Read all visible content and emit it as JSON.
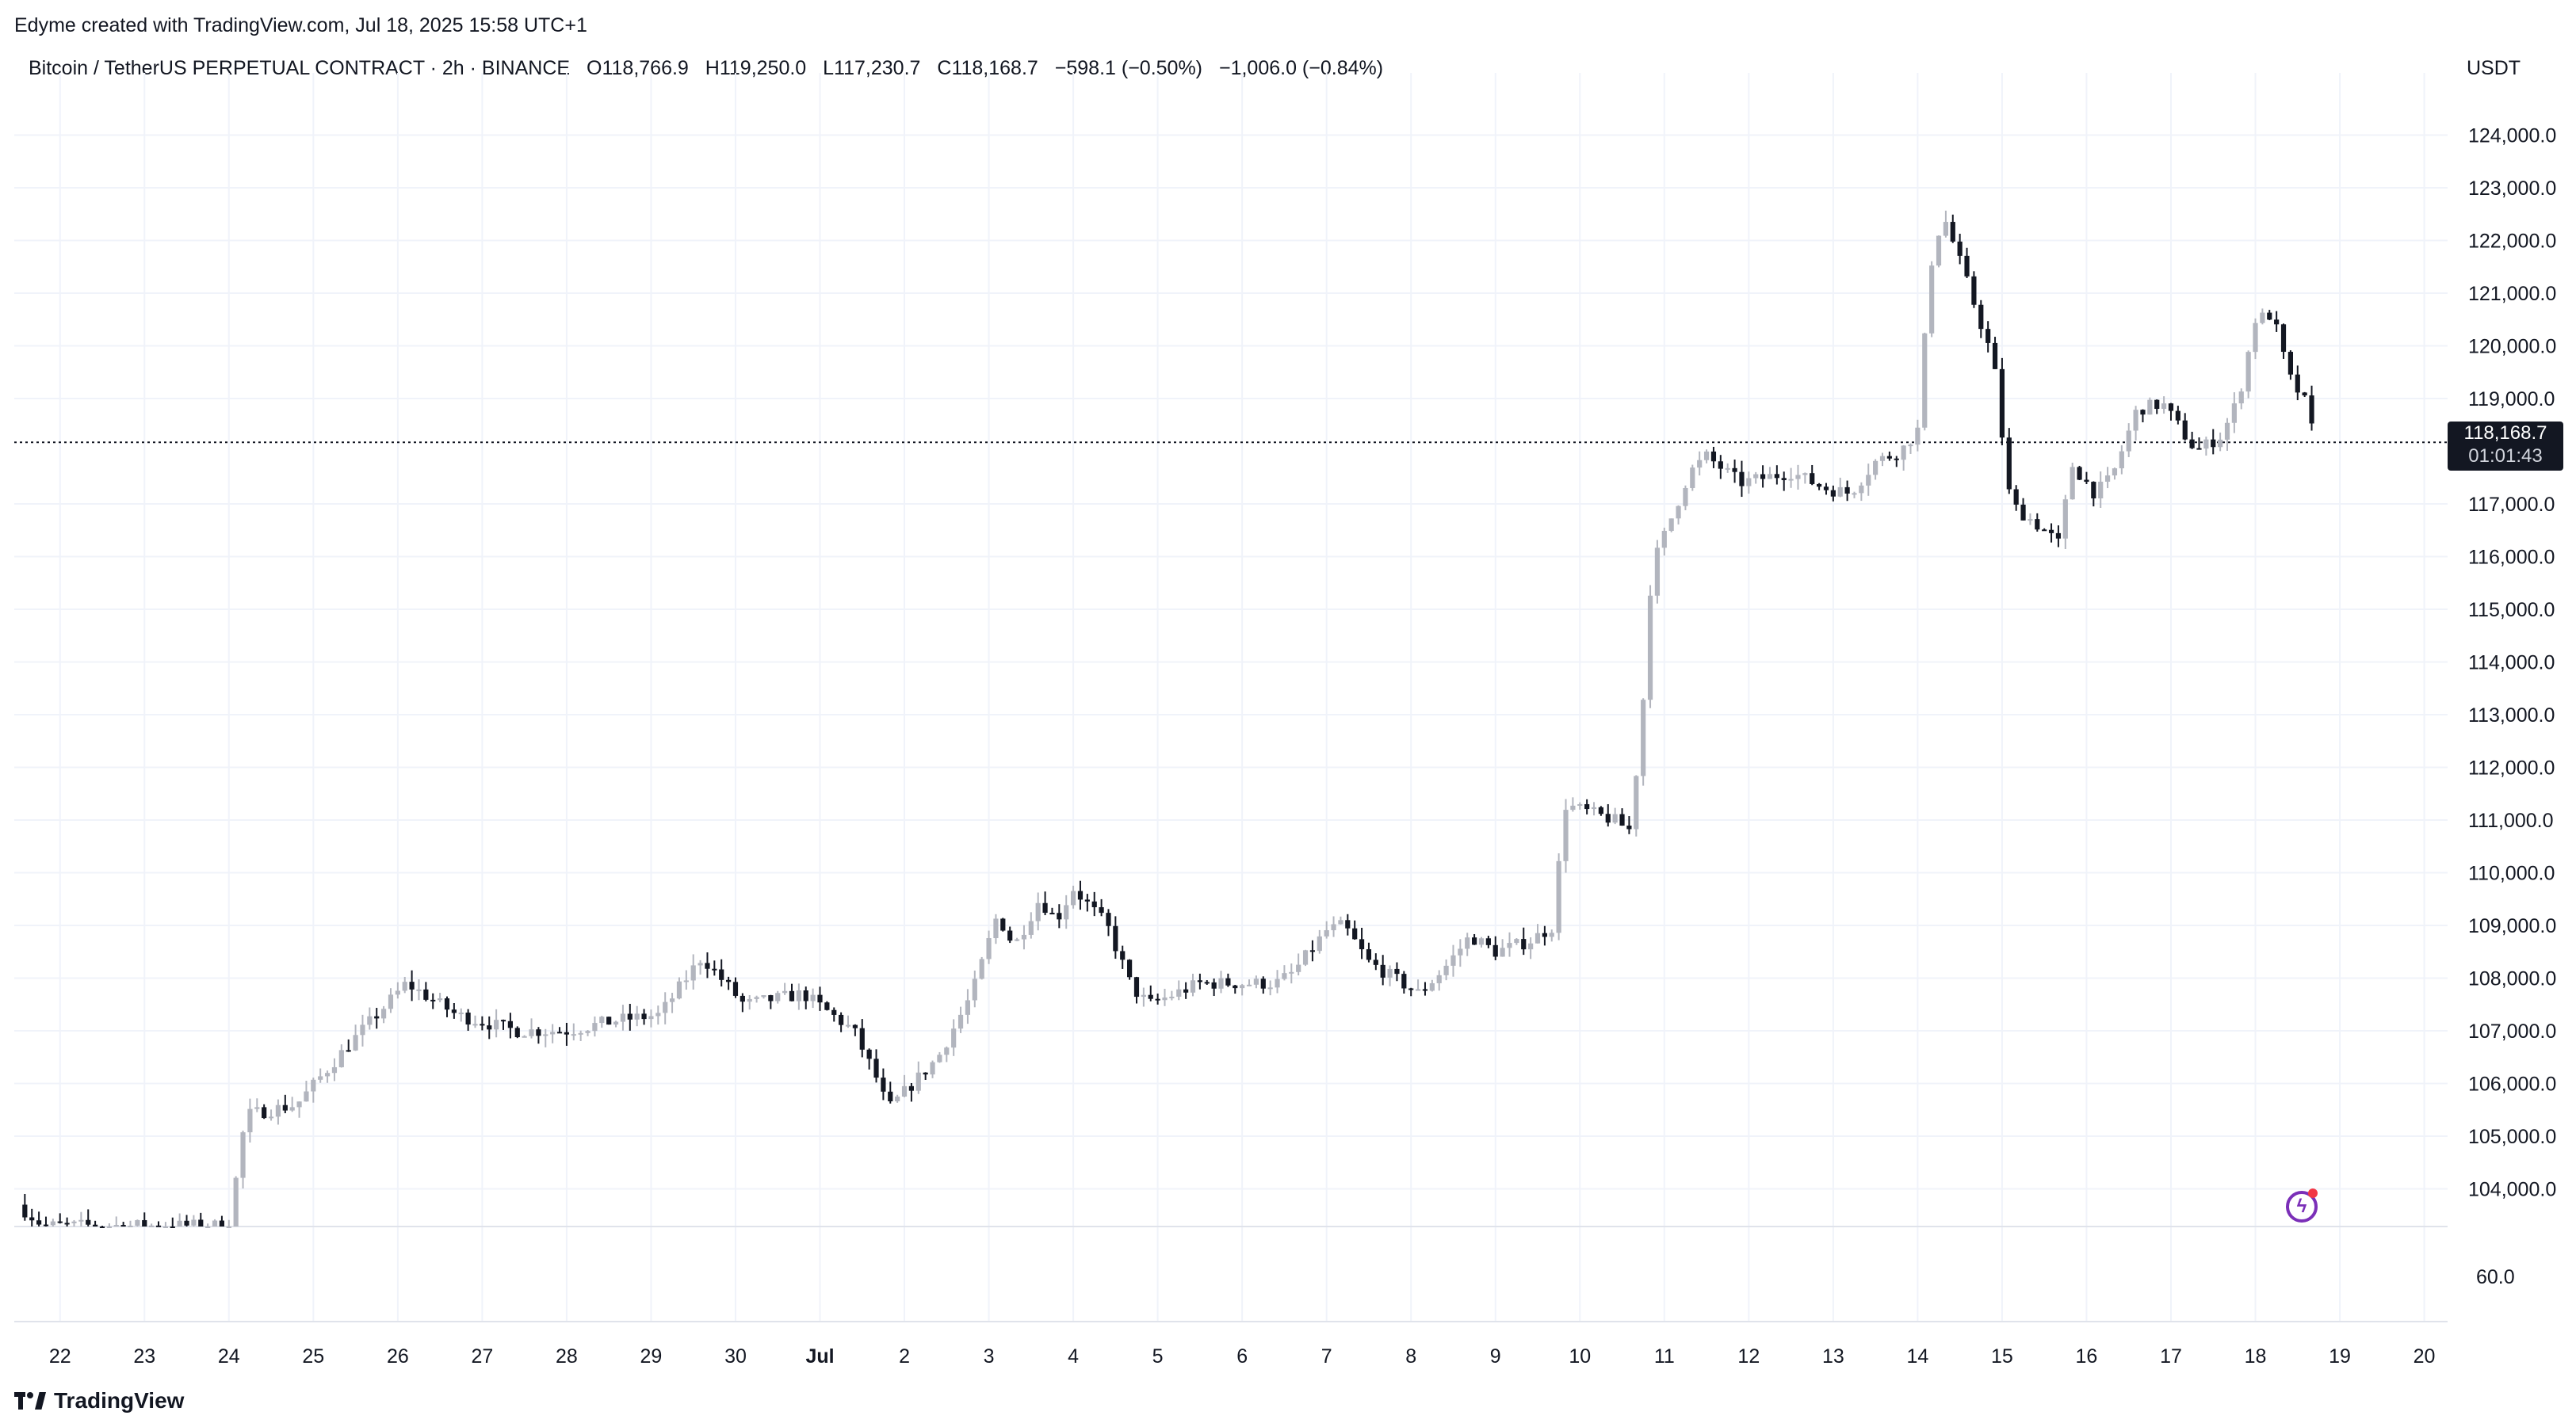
{
  "credit": "Edyme created with TradingView.com, Jul 18, 2025 15:58 UTC+1",
  "legend": {
    "symbol": "Bitcoin / TetherUS PERPETUAL CONTRACT · 2h · BINANCE",
    "open": "O118,766.9",
    "high": "H119,250.0",
    "low": "L117,230.7",
    "close": "C118,168.7",
    "change": "−598.1 (−0.50%)",
    "change2": "−1,006.0 (−0.84%)"
  },
  "currency": "USDT",
  "last_price": "118,168.7",
  "countdown": "01:01:43",
  "brand": "TradingView",
  "colors": {
    "up": "#b2b5be",
    "down": "#131722",
    "grid": "#f0f3fa",
    "text": "#131722",
    "badge_accent": "#7b2fb8"
  },
  "icons": {
    "brand": "tradingview-logo-icon",
    "badge": "lightning-bolt-icon"
  },
  "chart_data": {
    "type": "candlestick",
    "title": "",
    "price_range": [
      103300,
      124800
    ],
    "y_ticks": [
      "124,000.0",
      "123,000.0",
      "122,000.0",
      "121,000.0",
      "120,000.0",
      "119,000.0",
      "117,000.0",
      "116,000.0",
      "115,000.0",
      "114,000.0",
      "113,000.0",
      "112,000.0",
      "111,000.0",
      "110,000.0",
      "109,000.0",
      "108,000.0",
      "107,000.0",
      "106,000.0",
      "105,000.0",
      "104,000.0"
    ],
    "y_tick_values": [
      124000,
      123000,
      122000,
      121000,
      120000,
      119000,
      117000,
      116000,
      115000,
      114000,
      113000,
      112000,
      111000,
      110000,
      109000,
      108000,
      107000,
      106000,
      105000,
      104000
    ],
    "indicator_tick": "60.0",
    "x_ticks": [
      "22",
      "23",
      "24",
      "25",
      "26",
      "27",
      "28",
      "29",
      "30",
      "Jul",
      "2",
      "3",
      "4",
      "5",
      "6",
      "7",
      "8",
      "9",
      "10",
      "11",
      "12",
      "13",
      "14",
      "15",
      "16",
      "17",
      "18",
      "19",
      "20"
    ],
    "x_tick_days": [
      -9,
      -8,
      -7,
      -6,
      -5,
      -4,
      -3,
      -2,
      -1,
      0,
      1,
      2,
      3,
      4,
      5,
      6,
      7,
      8,
      9,
      10,
      11,
      12,
      13,
      14,
      15,
      16,
      17,
      18,
      19
    ],
    "last_price_value": 118168.7,
    "grid": true,
    "anchors": [
      [
        -9.5,
        103700
      ],
      [
        -9.2,
        103300
      ],
      [
        -7.0,
        103300
      ],
      [
        -6.8,
        105400
      ],
      [
        -6.2,
        105600
      ],
      [
        -5.6,
        106700
      ],
      [
        -4.9,
        107900
      ],
      [
        -4.3,
        107300
      ],
      [
        -3.6,
        107000
      ],
      [
        -3.0,
        107000
      ],
      [
        -2.4,
        107200
      ],
      [
        -1.9,
        107300
      ],
      [
        -1.4,
        108400
      ],
      [
        -0.9,
        107500
      ],
      [
        -0.2,
        107700
      ],
      [
        0.4,
        107000
      ],
      [
        0.7,
        106000
      ],
      [
        0.8,
        105500
      ],
      [
        1.4,
        106500
      ],
      [
        1.8,
        107700
      ],
      [
        2.1,
        109200
      ],
      [
        2.3,
        108600
      ],
      [
        2.6,
        109500
      ],
      [
        2.8,
        109100
      ],
      [
        3.0,
        109700
      ],
      [
        3.4,
        109000
      ],
      [
        3.5,
        108600
      ],
      [
        3.7,
        107800
      ],
      [
        3.9,
        107500
      ],
      [
        4.5,
        107900
      ],
      [
        5.1,
        107900
      ],
      [
        5.4,
        107900
      ],
      [
        5.6,
        108100
      ],
      [
        6.0,
        108900
      ],
      [
        6.2,
        109000
      ],
      [
        6.5,
        108300
      ],
      [
        7.1,
        107700
      ],
      [
        7.4,
        108200
      ],
      [
        7.7,
        108800
      ],
      [
        8.0,
        108500
      ],
      [
        8.4,
        108700
      ],
      [
        8.7,
        109000
      ],
      [
        8.8,
        111300
      ],
      [
        9.4,
        111000
      ],
      [
        9.6,
        110800
      ],
      [
        9.75,
        113300
      ],
      [
        9.85,
        115800
      ],
      [
        10.3,
        117600
      ],
      [
        10.5,
        117900
      ],
      [
        10.9,
        117400
      ],
      [
        11.5,
        117600
      ],
      [
        11.9,
        117300
      ],
      [
        12.2,
        117200
      ],
      [
        12.5,
        117800
      ],
      [
        12.8,
        118000
      ],
      [
        13.0,
        118400
      ],
      [
        13.15,
        121500
      ],
      [
        13.3,
        122500
      ],
      [
        13.5,
        121600
      ],
      [
        13.9,
        119700
      ],
      [
        14.0,
        118300
      ],
      [
        14.1,
        117000
      ],
      [
        14.5,
        116500
      ],
      [
        14.7,
        116200
      ],
      [
        14.8,
        117800
      ],
      [
        15.1,
        117200
      ],
      [
        15.3,
        117500
      ],
      [
        15.6,
        118800
      ],
      [
        15.9,
        118900
      ],
      [
        16.3,
        118000
      ],
      [
        16.6,
        118300
      ],
      [
        16.8,
        119000
      ],
      [
        17.0,
        120500
      ],
      [
        17.2,
        120600
      ],
      [
        17.4,
        119400
      ],
      [
        17.6,
        118900
      ],
      [
        17.7,
        118200
      ]
    ]
  }
}
